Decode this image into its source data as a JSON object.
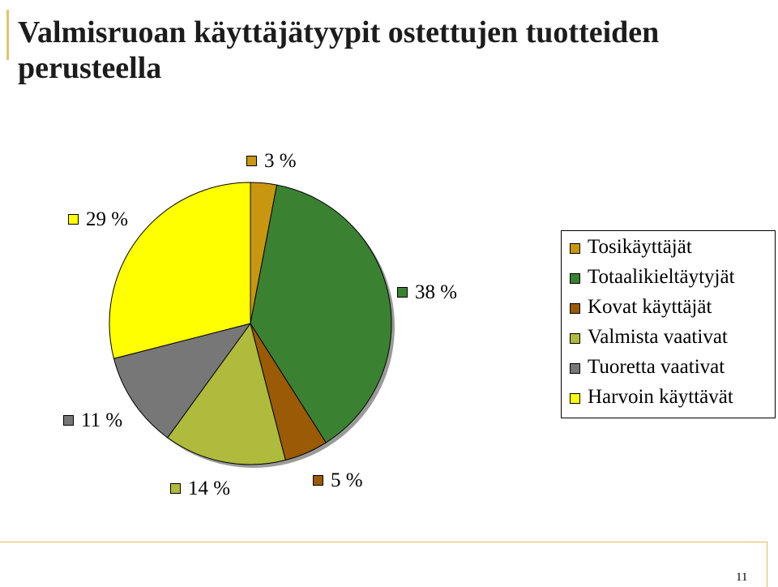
{
  "title": "Valmisruoan käyttäjätyypit ostettujen tuotteiden perusteella",
  "page_number": "11",
  "chart_data": {
    "type": "pie",
    "title": "",
    "series": [
      {
        "name": "Tosikäyttäjät",
        "value": 3,
        "label": "3 %",
        "color": "#C9960F"
      },
      {
        "name": "Totaalikieltäytyjät",
        "value": 38,
        "label": "38 %",
        "color": "#3A8232"
      },
      {
        "name": "Kovat käyttäjät",
        "value": 5,
        "label": "5 %",
        "color": "#9A5A06"
      },
      {
        "name": "Valmista vaativat",
        "value": 14,
        "label": "14 %",
        "color": "#AEBB3C"
      },
      {
        "name": "Tuoretta vaativat",
        "value": 11,
        "label": "11 %",
        "color": "#777777"
      },
      {
        "name": "Harvoin käyttävät",
        "value": 29,
        "label": "29 %",
        "color": "#FFFF00"
      }
    ],
    "legend_position": "right",
    "start": "12 o'clock, clockwise"
  }
}
